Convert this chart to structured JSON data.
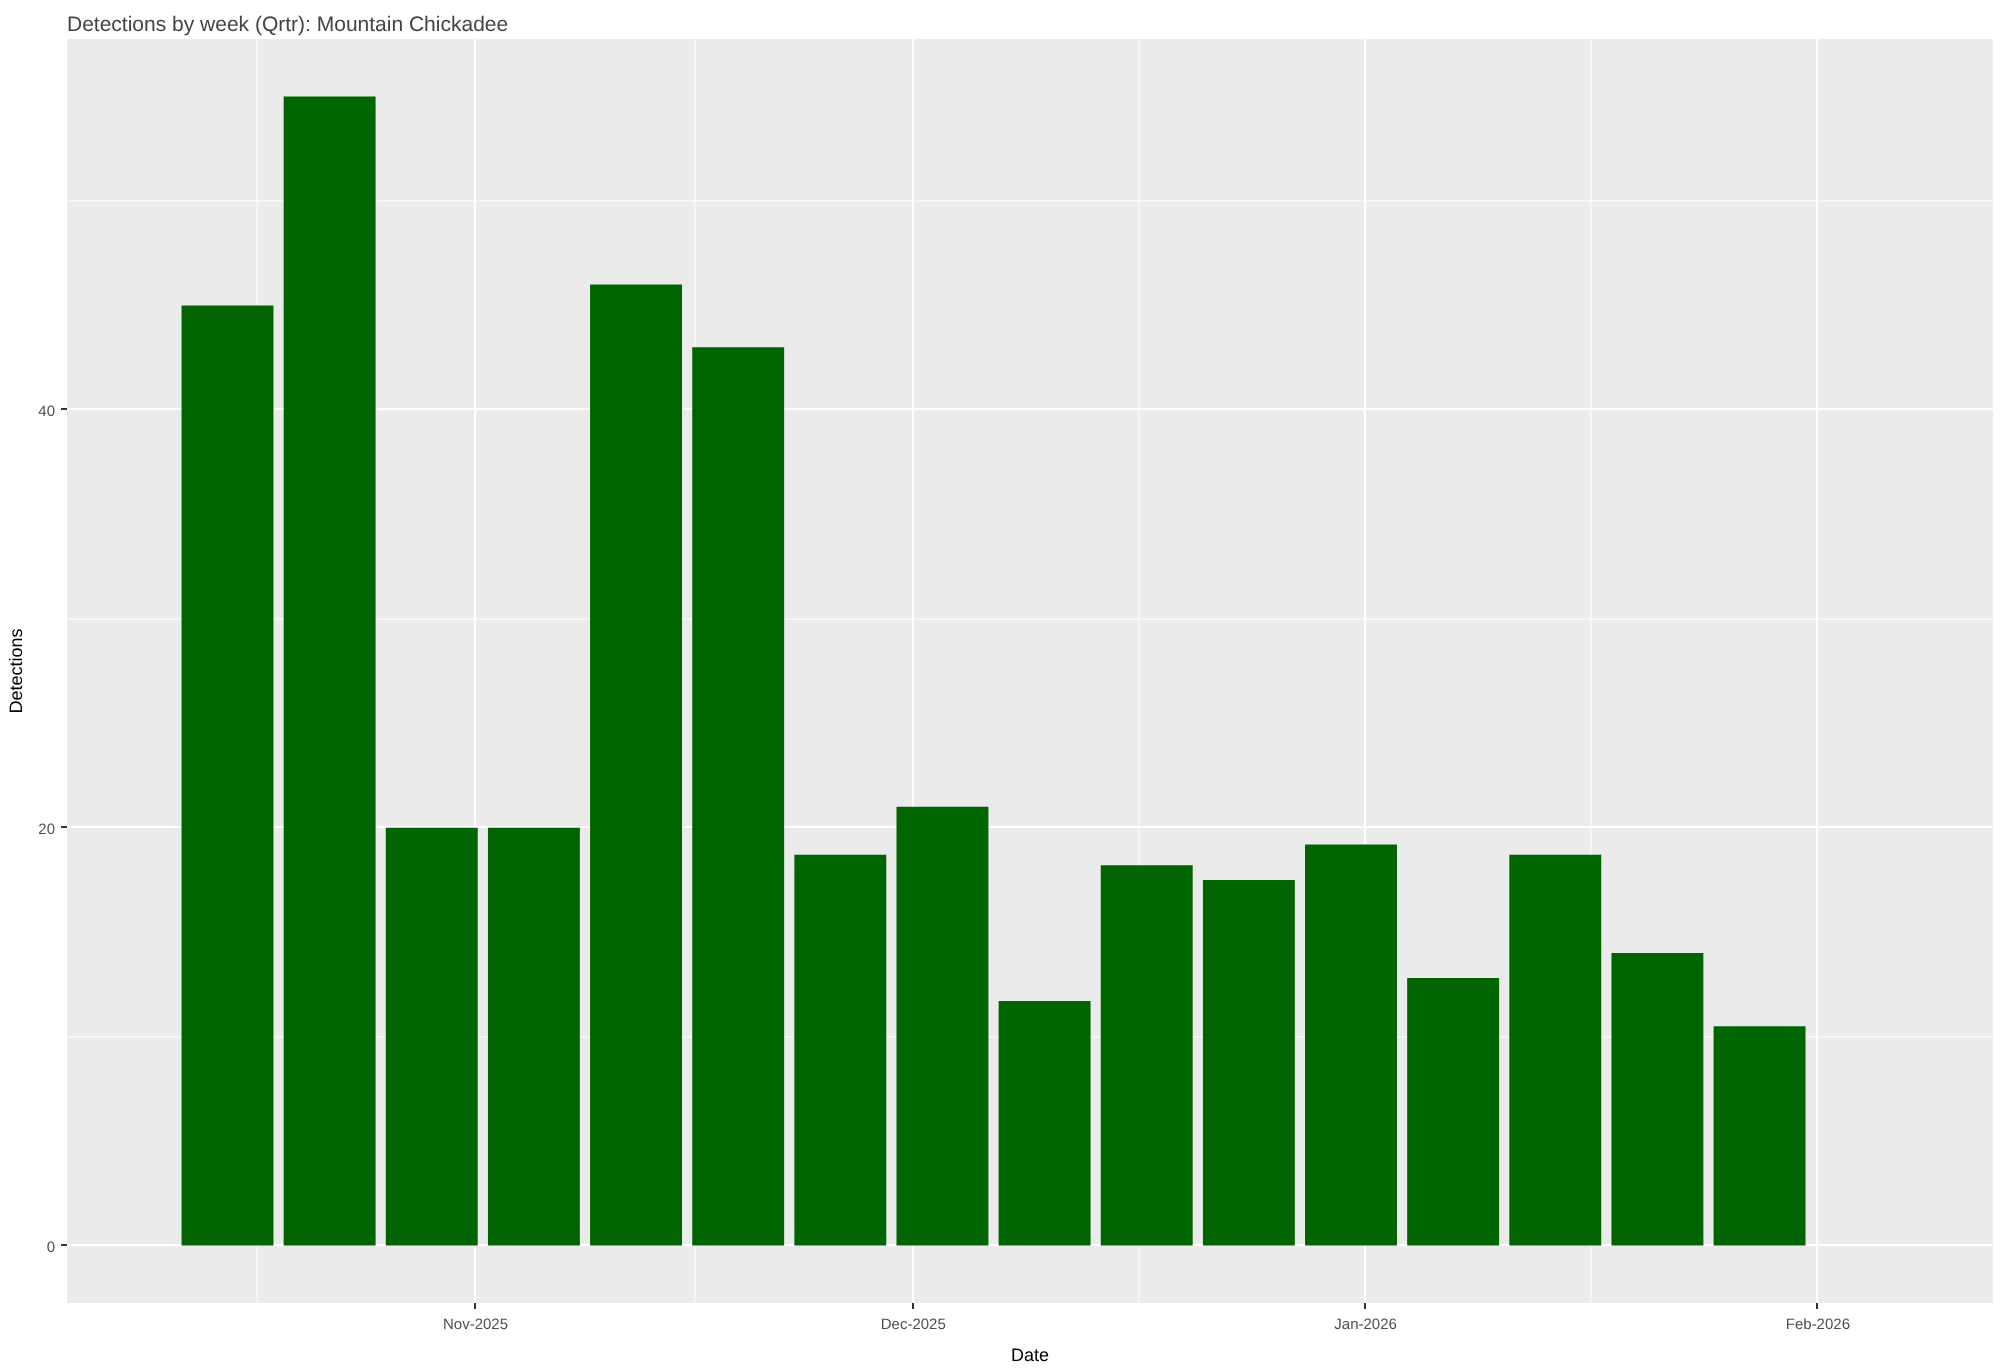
{
  "chart_data": {
    "type": "bar",
    "title": "Detections by week (Qrtr): Mountain Chickadee",
    "xlabel": "Date",
    "ylabel": "Detections",
    "x": [
      "2025-10-15",
      "2025-10-22",
      "2025-10-29",
      "2025-11-05",
      "2025-11-12",
      "2025-11-19",
      "2025-11-26",
      "2025-12-03",
      "2025-12-10",
      "2025-12-17",
      "2025-12-24",
      "2025-12-31",
      "2026-01-07",
      "2026-01-14",
      "2026-01-21",
      "2026-01-28"
    ],
    "values": [
      45,
      55,
      20,
      20,
      46,
      43,
      18.7,
      21,
      11.7,
      18.2,
      17.5,
      19.2,
      12.8,
      18.7,
      14,
      10.5
    ],
    "color": "#006400",
    "xlim": [
      "2025-10-04",
      "2026-02-13"
    ],
    "xticks": [
      {
        "value": "2025-11-01",
        "label": "Nov-2025"
      },
      {
        "value": "2025-12-01",
        "label": "Dec-2025"
      },
      {
        "value": "2026-01-01",
        "label": "Jan-2026"
      },
      {
        "value": "2026-02-01",
        "label": "Feb-2026"
      }
    ],
    "ylim": [
      -2.75,
      57.75
    ],
    "yticks": [
      0,
      20,
      40
    ],
    "grid": true
  }
}
